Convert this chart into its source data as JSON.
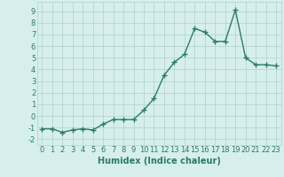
{
  "x": [
    0,
    1,
    2,
    3,
    4,
    5,
    6,
    7,
    8,
    9,
    10,
    11,
    12,
    13,
    14,
    15,
    16,
    17,
    18,
    19,
    20,
    21,
    22,
    23
  ],
  "y": [
    -1.1,
    -1.1,
    -1.4,
    -1.2,
    -1.1,
    -1.2,
    -0.7,
    -0.3,
    -0.3,
    -0.3,
    0.5,
    1.5,
    3.5,
    4.6,
    5.3,
    7.5,
    7.2,
    6.4,
    6.4,
    9.1,
    5.0,
    4.4,
    4.4,
    4.3
  ],
  "line_color": "#2d7a6a",
  "marker": "+",
  "marker_size": 4,
  "bg_color": "#d6efed",
  "grid_color": "#b0d0cc",
  "tick_color": "#2d7a6a",
  "xlabel": "Humidex (Indice chaleur)",
  "ylim": [
    -2.5,
    9.8
  ],
  "xlim": [
    -0.5,
    23.5
  ],
  "yticks": [
    -2,
    -1,
    0,
    1,
    2,
    3,
    4,
    5,
    6,
    7,
    8,
    9
  ],
  "xticks": [
    0,
    1,
    2,
    3,
    4,
    5,
    6,
    7,
    8,
    9,
    10,
    11,
    12,
    13,
    14,
    15,
    16,
    17,
    18,
    19,
    20,
    21,
    22,
    23
  ],
  "font_size": 6,
  "label_font_size": 7,
  "linewidth": 1.0,
  "marker_lw": 1.0
}
